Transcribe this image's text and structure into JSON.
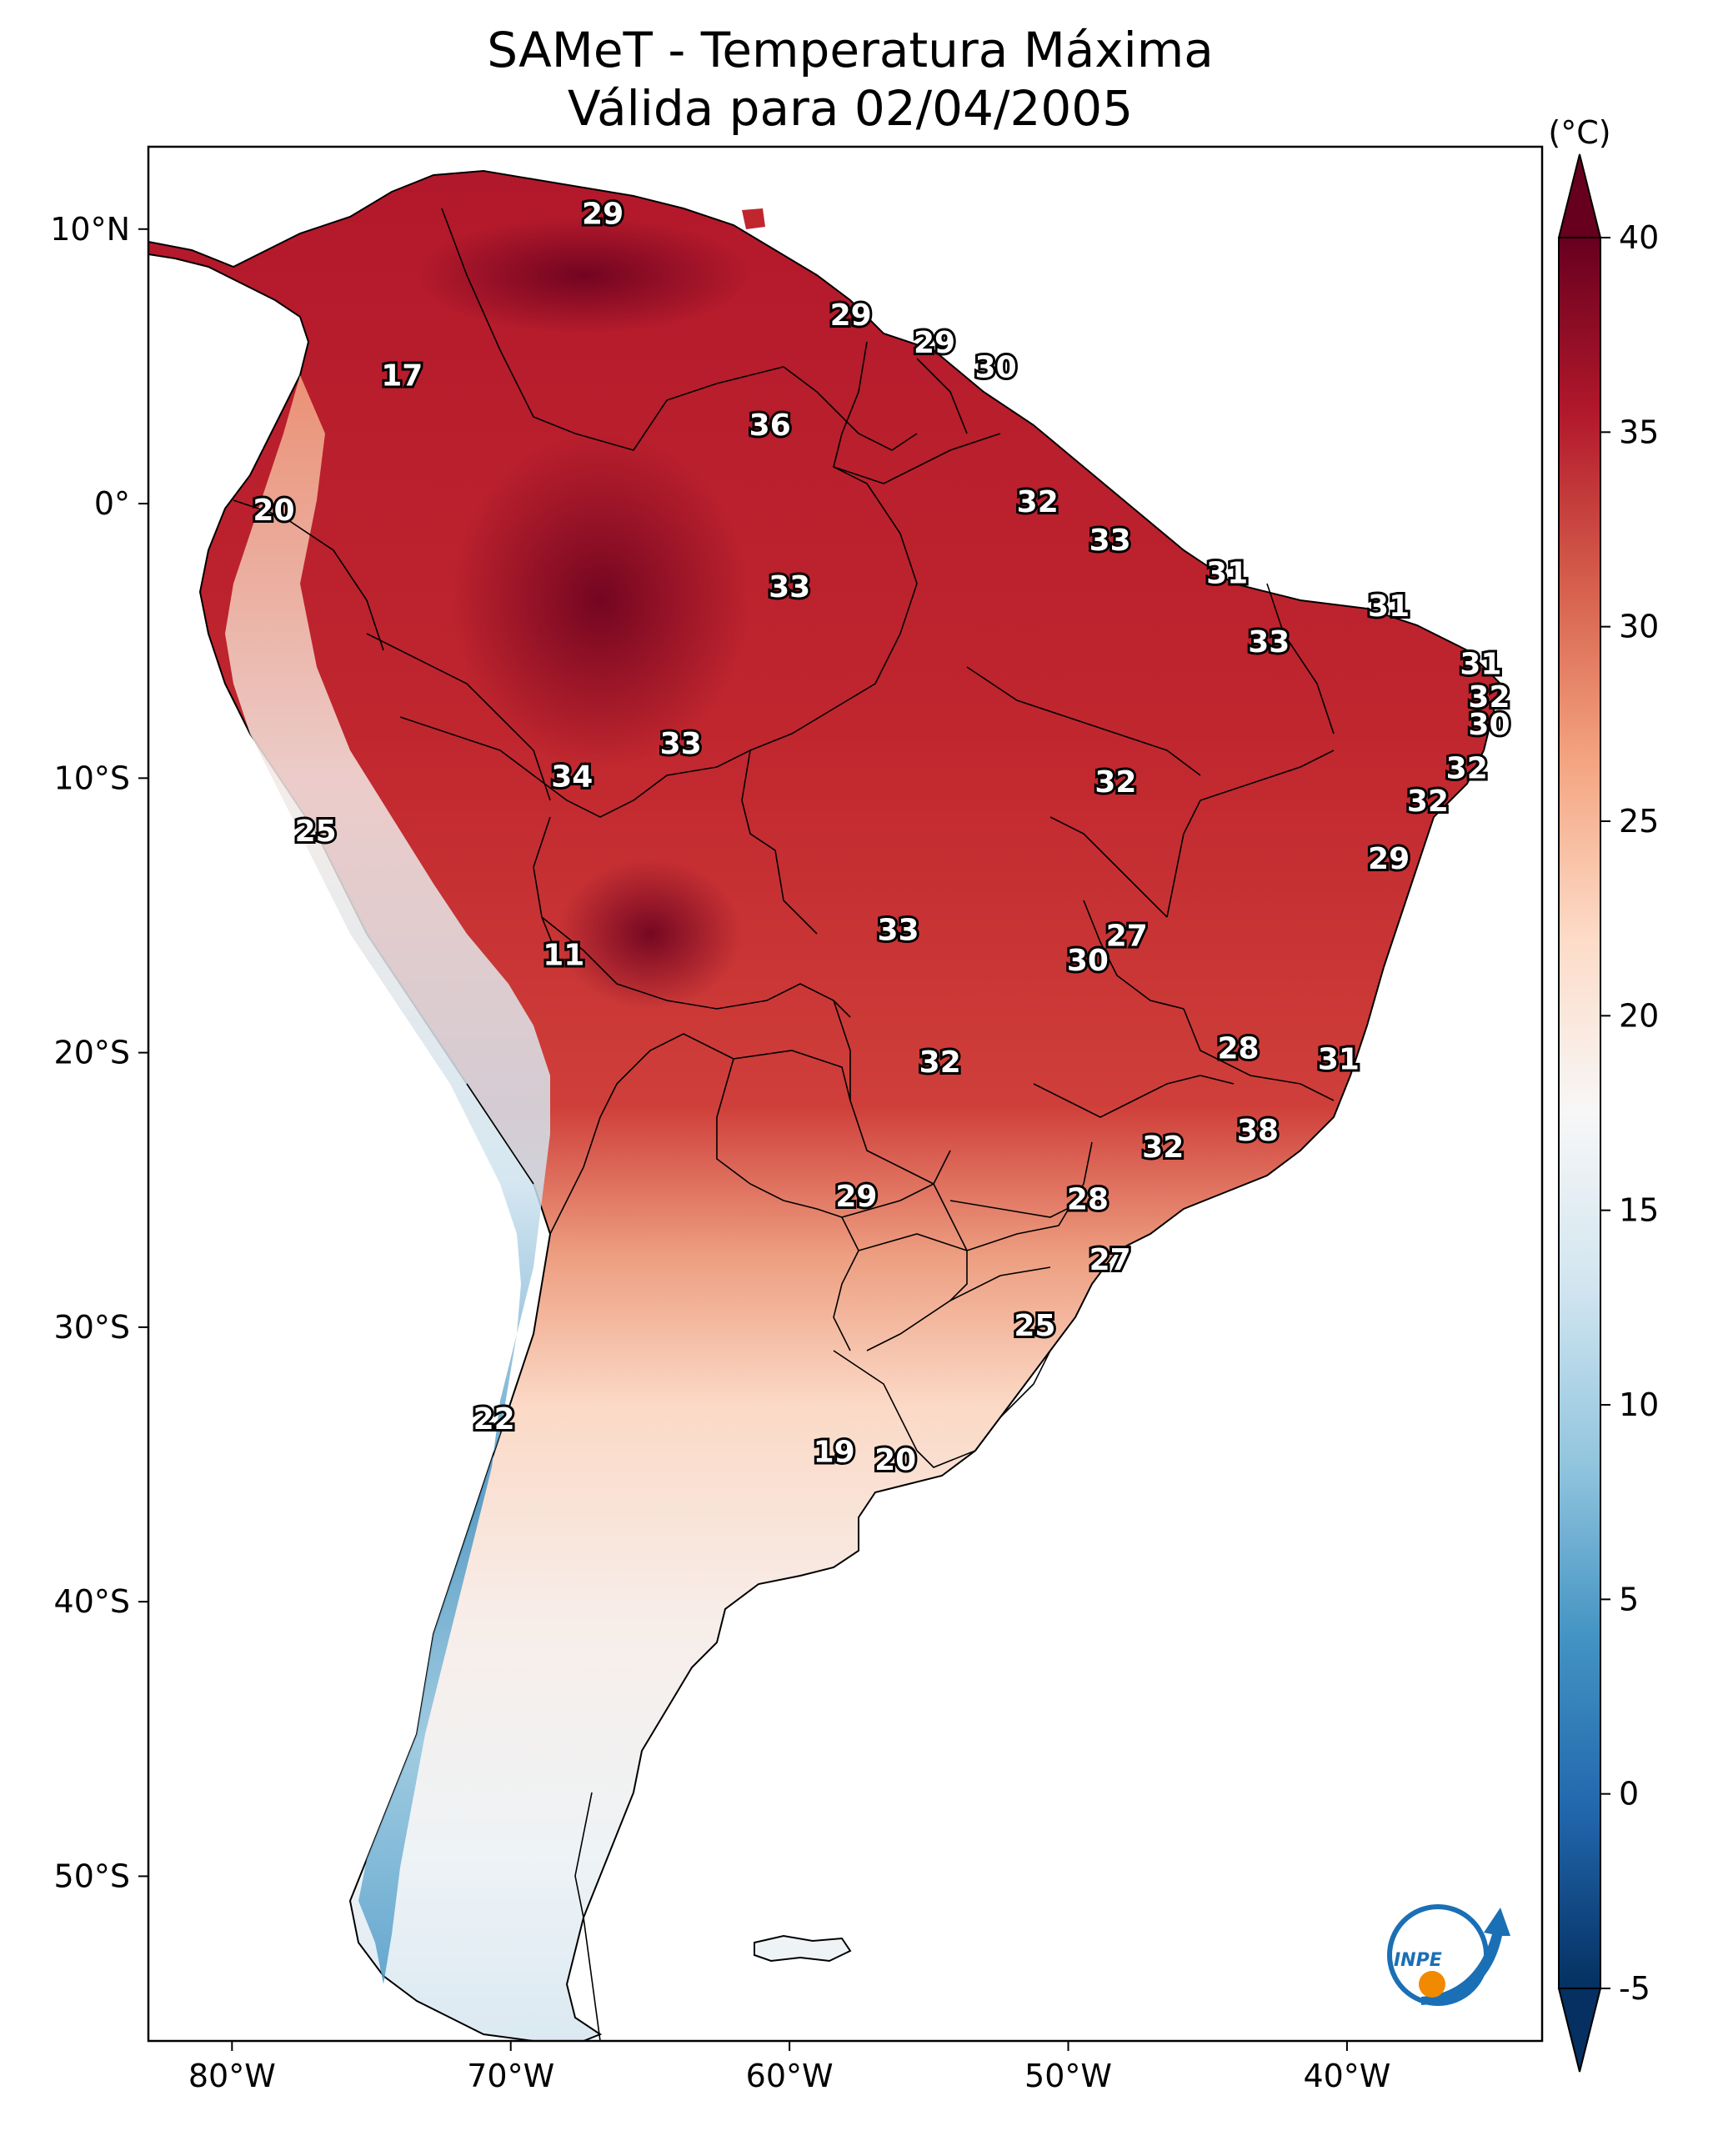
{
  "title": {
    "line1": "SAMeT - Temperatura Máxima",
    "line2": "Válida para 02/04/2005"
  },
  "map": {
    "lon_range": [
      -83,
      -33
    ],
    "lat_range": [
      -56,
      13
    ],
    "lat_ticks": [
      {
        "value": 10,
        "label": "10°N"
      },
      {
        "value": 0,
        "label": "0°"
      },
      {
        "value": -10,
        "label": "10°S"
      },
      {
        "value": -20,
        "label": "20°S"
      },
      {
        "value": -30,
        "label": "30°S"
      },
      {
        "value": -40,
        "label": "40°S"
      },
      {
        "value": -50,
        "label": "50°S"
      }
    ],
    "lon_ticks": [
      {
        "value": -80,
        "label": "80°W"
      },
      {
        "value": -70,
        "label": "70°W"
      },
      {
        "value": -60,
        "label": "60°W"
      },
      {
        "value": -50,
        "label": "50°W"
      },
      {
        "value": -40,
        "label": "40°W"
      }
    ],
    "city_labels": [
      {
        "lon": -66.7,
        "lat": 10.5,
        "value": "29"
      },
      {
        "lon": -57.8,
        "lat": 6.8,
        "value": "29"
      },
      {
        "lon": -54.8,
        "lat": 5.8,
        "value": "29"
      },
      {
        "lon": -52.6,
        "lat": 4.9,
        "value": "30"
      },
      {
        "lon": -73.9,
        "lat": 4.6,
        "value": "17"
      },
      {
        "lon": -60.7,
        "lat": 2.8,
        "value": "36"
      },
      {
        "lon": -51.1,
        "lat": 0.0,
        "value": "32"
      },
      {
        "lon": -78.5,
        "lat": -0.3,
        "value": "20"
      },
      {
        "lon": -48.5,
        "lat": -1.4,
        "value": "33"
      },
      {
        "lon": -44.3,
        "lat": -2.6,
        "value": "31"
      },
      {
        "lon": -60.0,
        "lat": -3.1,
        "value": "33"
      },
      {
        "lon": -38.5,
        "lat": -3.8,
        "value": "31"
      },
      {
        "lon": -42.8,
        "lat": -5.1,
        "value": "33"
      },
      {
        "lon": -35.2,
        "lat": -5.9,
        "value": "31"
      },
      {
        "lon": -34.9,
        "lat": -7.1,
        "value": "32"
      },
      {
        "lon": -34.9,
        "lat": -8.1,
        "value": "30"
      },
      {
        "lon": -63.9,
        "lat": -8.8,
        "value": "33"
      },
      {
        "lon": -35.7,
        "lat": -9.7,
        "value": "32"
      },
      {
        "lon": -67.8,
        "lat": -10.0,
        "value": "34"
      },
      {
        "lon": -48.3,
        "lat": -10.2,
        "value": "32"
      },
      {
        "lon": -37.1,
        "lat": -10.9,
        "value": "32"
      },
      {
        "lon": -77.0,
        "lat": -12.0,
        "value": "25"
      },
      {
        "lon": -38.5,
        "lat": -13.0,
        "value": "29"
      },
      {
        "lon": -56.1,
        "lat": -15.6,
        "value": "33"
      },
      {
        "lon": -47.9,
        "lat": -15.8,
        "value": "27"
      },
      {
        "lon": -68.1,
        "lat": -16.5,
        "value": "11"
      },
      {
        "lon": -49.3,
        "lat": -16.7,
        "value": "30"
      },
      {
        "lon": -43.9,
        "lat": -19.9,
        "value": "28"
      },
      {
        "lon": -40.3,
        "lat": -20.3,
        "value": "31"
      },
      {
        "lon": -54.6,
        "lat": -20.4,
        "value": "32"
      },
      {
        "lon": -43.2,
        "lat": -22.9,
        "value": "38"
      },
      {
        "lon": -46.6,
        "lat": -23.5,
        "value": "32"
      },
      {
        "lon": -57.6,
        "lat": -25.3,
        "value": "29"
      },
      {
        "lon": -49.3,
        "lat": -25.4,
        "value": "28"
      },
      {
        "lon": -48.5,
        "lat": -27.6,
        "value": "27"
      },
      {
        "lon": -51.2,
        "lat": -30.0,
        "value": "25"
      },
      {
        "lon": -70.6,
        "lat": -33.4,
        "value": "22"
      },
      {
        "lon": -58.4,
        "lat": -34.6,
        "value": "19"
      },
      {
        "lon": -56.2,
        "lat": -34.9,
        "value": "20"
      }
    ],
    "logo_text": "INPE"
  },
  "colorbar": {
    "unit": "(°C)",
    "min": -5,
    "max": 40,
    "ticks": [
      {
        "value": 40,
        "label": "40"
      },
      {
        "value": 35,
        "label": "35"
      },
      {
        "value": 30,
        "label": "30"
      },
      {
        "value": 25,
        "label": "25"
      },
      {
        "value": 20,
        "label": "20"
      },
      {
        "value": 15,
        "label": "15"
      },
      {
        "value": 10,
        "label": "10"
      },
      {
        "value": 5,
        "label": "5"
      },
      {
        "value": 0,
        "label": "0"
      },
      {
        "value": -5,
        "label": "-5"
      }
    ],
    "colors": [
      "#053061",
      "#2166ac",
      "#4393c3",
      "#92c5de",
      "#d1e5f0",
      "#f7f7f7",
      "#fddbc7",
      "#f4a582",
      "#d6604d",
      "#b2182b",
      "#67001f"
    ]
  }
}
